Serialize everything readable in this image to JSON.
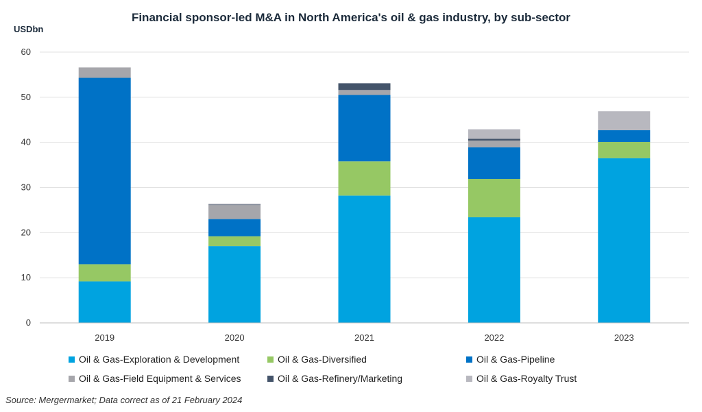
{
  "chart_data": {
    "type": "bar",
    "stacked": true,
    "title": "Financial sponsor-led M&A in North America's oil & gas industry, by sub-sector",
    "ylabel": "USDbn",
    "xlabel": "",
    "ylim": [
      0,
      60
    ],
    "yticks": [
      0,
      10,
      20,
      30,
      40,
      50,
      60
    ],
    "grid": true,
    "legend_position": "bottom",
    "categories": [
      "2019",
      "2020",
      "2021",
      "2022",
      "2023"
    ],
    "series": [
      {
        "name": "Oil & Gas-Exploration & Development",
        "color": "#00a3e0",
        "values": [
          9.2,
          17.0,
          28.2,
          23.4,
          36.5
        ]
      },
      {
        "name": "Oil & Gas-Diversified",
        "color": "#96c864",
        "values": [
          3.8,
          2.2,
          7.6,
          8.5,
          3.6
        ]
      },
      {
        "name": "Oil & Gas-Pipeline",
        "color": "#0072c6",
        "values": [
          41.3,
          3.8,
          14.7,
          7.0,
          2.6
        ]
      },
      {
        "name": "Oil & Gas-Field Equipment & Services",
        "color": "#a6a6ab",
        "values": [
          2.3,
          3.1,
          1.1,
          1.5,
          0.0
        ]
      },
      {
        "name": "Oil & Gas-Refinery/Marketing",
        "color": "#44546a",
        "values": [
          0.0,
          0.1,
          1.5,
          0.4,
          0.0
        ]
      },
      {
        "name": "Oil & Gas-Royalty Trust",
        "color": "#b8b8bf",
        "values": [
          0.0,
          0.2,
          0.0,
          2.1,
          4.2
        ]
      }
    ]
  },
  "source": "Source: Mergermarket; Data correct as of 21 February 2024"
}
